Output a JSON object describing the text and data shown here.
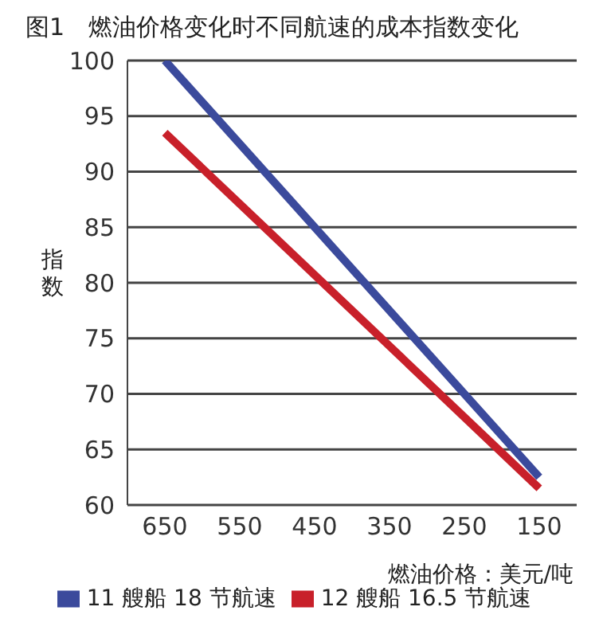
{
  "chart_data": {
    "type": "line",
    "title": "图1　燃油价格变化时不同航速的成本指数变化",
    "xlabel": "燃油价格：美元/吨",
    "ylabel": "指数",
    "x": [
      650,
      150
    ],
    "series": [
      {
        "name": "11 艘船 18 节航速",
        "color": "#3b4a9c",
        "values": [
          100,
          62.5
        ]
      },
      {
        "name": "12 艘船 16.5 节航速",
        "color": "#c8202a",
        "values": [
          93.5,
          61.5
        ]
      }
    ],
    "xlim": [
      700,
      100
    ],
    "xticks": [
      650,
      550,
      450,
      350,
      250,
      150
    ],
    "ylim": [
      60,
      100
    ],
    "yticks": [
      60,
      65,
      70,
      75,
      80,
      85,
      90,
      95,
      100
    ],
    "grid": "y",
    "legend": "bottom",
    "marker": "none",
    "line_style": "solid"
  }
}
